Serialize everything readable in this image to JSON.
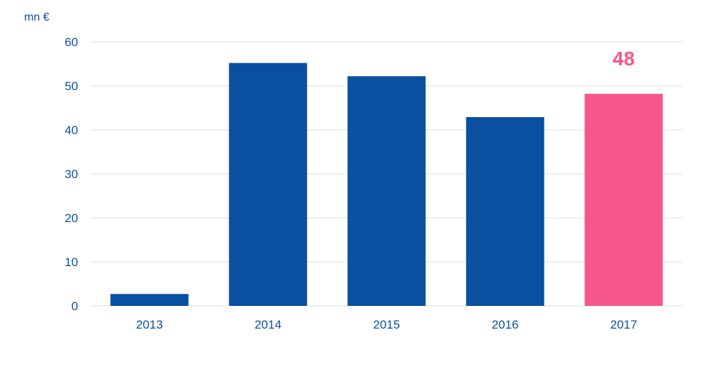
{
  "chart_data": {
    "type": "bar",
    "ylabel": "mn €",
    "categories": [
      "2013",
      "2014",
      "2015",
      "2016",
      "2017"
    ],
    "values": [
      2.7,
      55.2,
      52.2,
      42.9,
      48.2
    ],
    "ylim": [
      0,
      60
    ],
    "yticks": [
      0,
      10,
      20,
      30,
      40,
      50,
      60
    ],
    "grid": true,
    "colors": {
      "default": "#0a4fa0",
      "highlight": "#f5578a",
      "axis_text": "#0a4fa0",
      "grid": "#dcdcdc"
    },
    "highlight_index": 4,
    "data_labels": [
      {
        "category": "2017",
        "text": "48"
      }
    ]
  }
}
